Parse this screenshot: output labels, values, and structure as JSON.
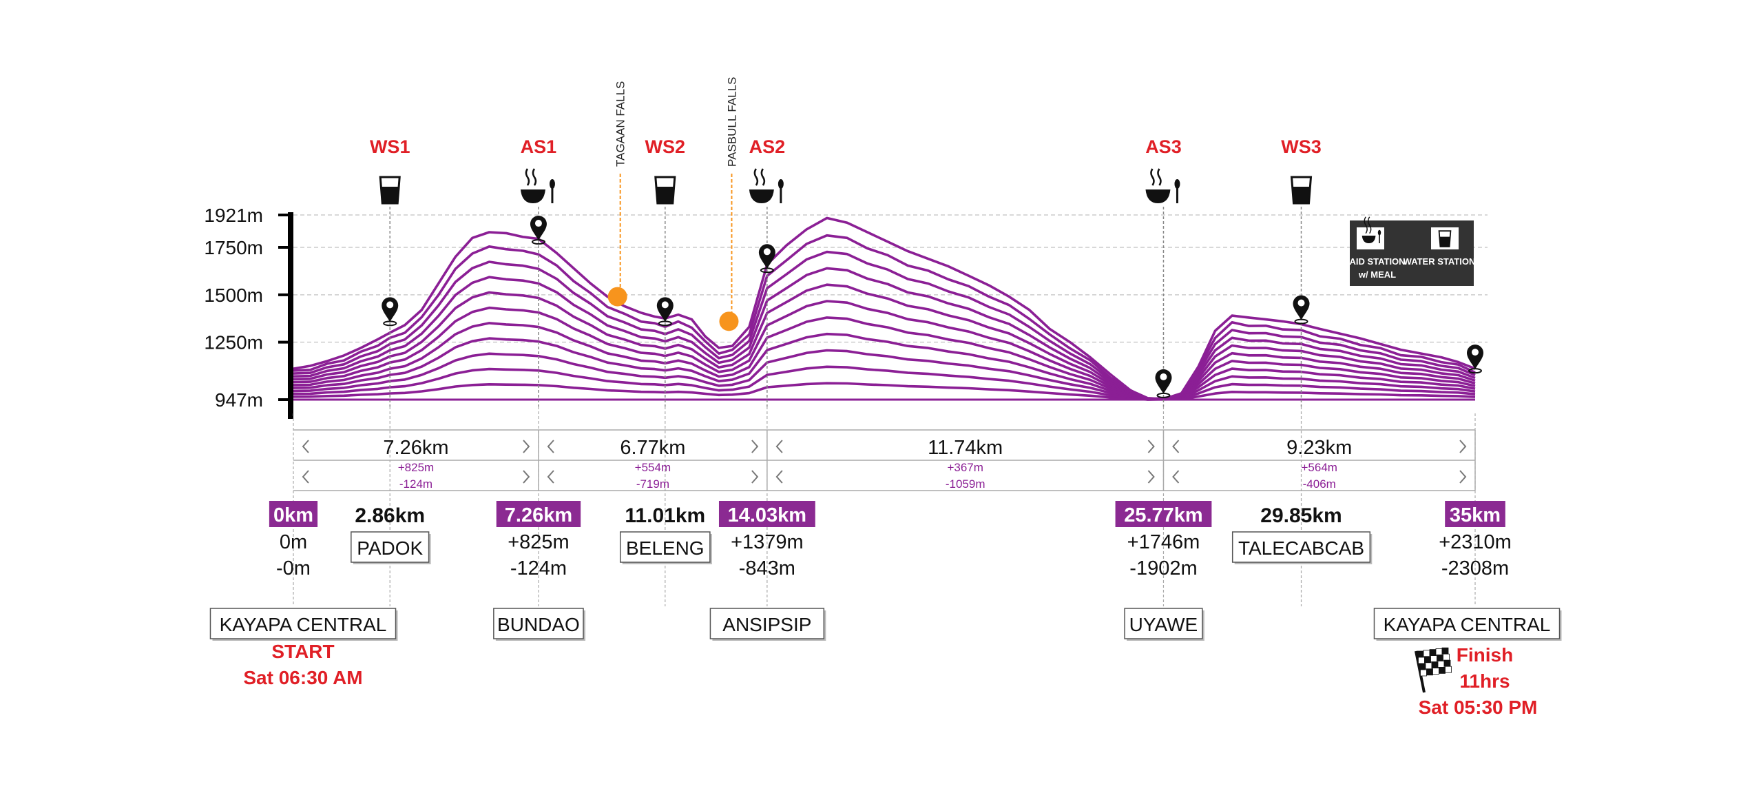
{
  "colors": {
    "profile": "#8b1f95",
    "accent_fill": "#8b2a92",
    "station_label": "#e01f26",
    "falls": "#f7941d",
    "legend_bg": "#333333",
    "axis": "#000000",
    "grid": "#cccccc"
  },
  "chart_data": {
    "type": "area",
    "title": "",
    "xlabel": "",
    "ylabel": "",
    "xlim": [
      0,
      35
    ],
    "ylim": [
      947,
      1921
    ],
    "ytick_labels": [
      "1921m",
      "1750m",
      "1500m",
      "1250m",
      "947m"
    ],
    "ytick_values": [
      1921,
      1750,
      1500,
      1250,
      947
    ],
    "grid": true,
    "profile": {
      "x": [
        0,
        0.5,
        1,
        1.5,
        2,
        2.5,
        2.86,
        3.3,
        3.8,
        4.3,
        4.8,
        5.3,
        5.8,
        6.3,
        6.8,
        7.26,
        7.8,
        8.3,
        8.8,
        9.3,
        9.8,
        10.3,
        10.7,
        11.01,
        11.4,
        11.8,
        12.2,
        12.6,
        13.0,
        13.5,
        14.03,
        14.6,
        15.2,
        15.8,
        16.4,
        17.0,
        17.6,
        18.2,
        18.8,
        19.4,
        20.0,
        20.6,
        21.2,
        21.8,
        22.4,
        23.0,
        23.6,
        24.2,
        24.8,
        25.3,
        25.77,
        26.3,
        26.8,
        27.3,
        27.8,
        28.3,
        28.8,
        29.3,
        29.85,
        30.4,
        31.0,
        31.6,
        32.2,
        32.8,
        33.4,
        34.0,
        34.5,
        35
      ],
      "y": [
        1110,
        1125,
        1150,
        1180,
        1220,
        1265,
        1300,
        1340,
        1420,
        1560,
        1700,
        1800,
        1830,
        1825,
        1805,
        1795,
        1720,
        1640,
        1560,
        1490,
        1440,
        1405,
        1385,
        1375,
        1395,
        1370,
        1280,
        1220,
        1230,
        1330,
        1660,
        1760,
        1845,
        1905,
        1880,
        1830,
        1780,
        1730,
        1690,
        1650,
        1600,
        1550,
        1490,
        1420,
        1320,
        1250,
        1170,
        1080,
        995,
        955,
        950,
        980,
        1120,
        1310,
        1390,
        1380,
        1370,
        1360,
        1345,
        1320,
        1295,
        1270,
        1240,
        1210,
        1190,
        1170,
        1145,
        1110
      ]
    },
    "stations": [
      {
        "label": "WS1",
        "type": "water",
        "km": 2.86
      },
      {
        "label": "AS1",
        "type": "aid",
        "km": 7.26
      },
      {
        "label": "WS2",
        "type": "water",
        "km": 11.01
      },
      {
        "label": "AS2",
        "type": "aid",
        "km": 14.03
      },
      {
        "label": "AS3",
        "type": "aid",
        "km": 25.77
      },
      {
        "label": "WS3",
        "type": "water",
        "km": 29.85
      }
    ],
    "falls": [
      {
        "label": "TAGAAN FALLS",
        "km": 9.6,
        "elev": 1490
      },
      {
        "label": "PASBULL FALLS",
        "km": 12.9,
        "elev": 1360
      }
    ],
    "pins": [
      {
        "km": 2.86,
        "elev": 1400
      },
      {
        "km": 7.26,
        "elev": 1830
      },
      {
        "km": 11.01,
        "elev": 1400
      },
      {
        "km": 14.03,
        "elev": 1680
      },
      {
        "km": 25.77,
        "elev": 1020
      },
      {
        "km": 29.85,
        "elev": 1410
      },
      {
        "km": 35,
        "elev": 1150
      }
    ],
    "segments": [
      {
        "from_km": 0,
        "to_km": 7.26,
        "distance": "7.26km",
        "gain": "+825m",
        "loss": "-124m"
      },
      {
        "from_km": 7.26,
        "to_km": 14.03,
        "distance": "6.77km",
        "gain": "+554m",
        "loss": "-719m"
      },
      {
        "from_km": 14.03,
        "to_km": 25.77,
        "distance": "11.74km",
        "gain": "+367m",
        "loss": "-1059m"
      },
      {
        "from_km": 25.77,
        "to_km": 35,
        "distance": "9.23km",
        "gain": "+564m",
        "loss": "-406m"
      }
    ],
    "checkpoints": [
      {
        "km": 0,
        "km_label": "0km",
        "gain": "0m",
        "loss": "-0m",
        "name": "KAYAPA CENTRAL"
      },
      {
        "km": 7.26,
        "km_label": "7.26km",
        "gain": "+825m",
        "loss": "-124m",
        "name": "BUNDAO"
      },
      {
        "km": 14.03,
        "km_label": "14.03km",
        "gain": "+1379m",
        "loss": "-843m",
        "name": "ANSIPSIP"
      },
      {
        "km": 25.77,
        "km_label": "25.77km",
        "gain": "+1746m",
        "loss": "-1902m",
        "name": "UYAWE"
      },
      {
        "km": 35,
        "km_label": "35km",
        "gain": "+2310m",
        "loss": "-2308m",
        "name": "KAYAPA CENTRAL"
      }
    ],
    "water_checkpoints": [
      {
        "km": 2.86,
        "km_label": "2.86km",
        "name": "PADOK"
      },
      {
        "km": 11.01,
        "km_label": "11.01km",
        "name": "BELENG"
      },
      {
        "km": 29.85,
        "km_label": "29.85km",
        "name": "TALECABCAB"
      }
    ],
    "start": {
      "label": "START",
      "time": "Sat 06:30 AM"
    },
    "finish": {
      "label": "Finish",
      "duration": "11hrs",
      "time": "Sat 05:30 PM"
    },
    "legend": {
      "aid_label_1": "AID STATION",
      "aid_label_2": "w/ MEAL",
      "water_label": "WATER STATION",
      "placement": "top-right"
    }
  }
}
